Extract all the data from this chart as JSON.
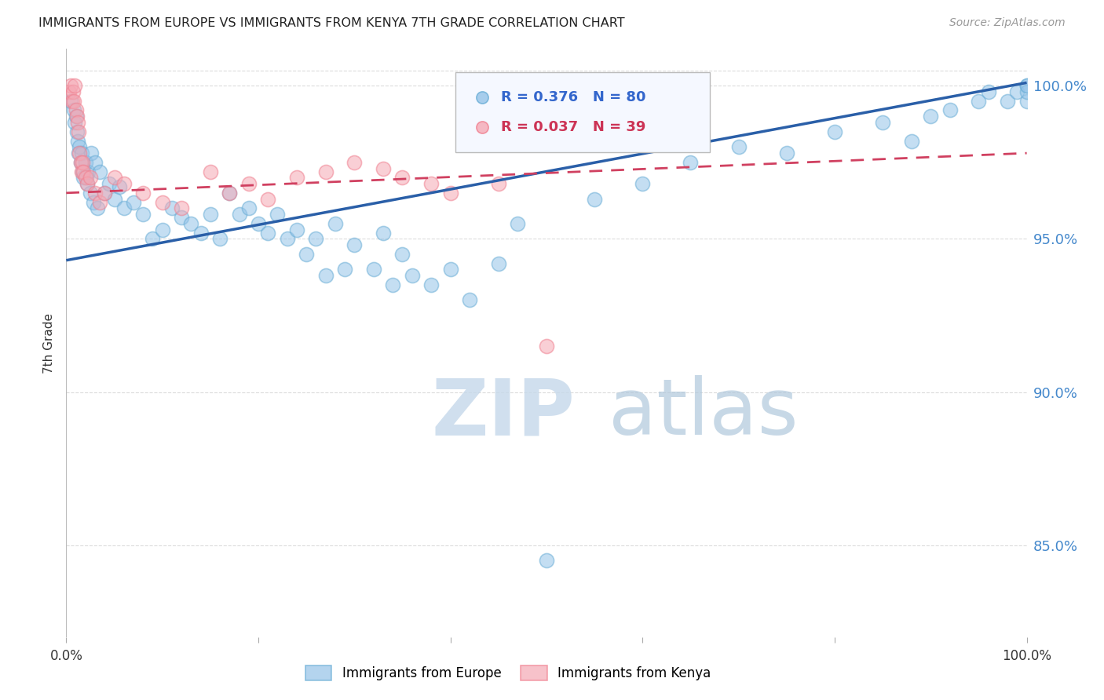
{
  "title": "IMMIGRANTS FROM EUROPE VS IMMIGRANTS FROM KENYA 7TH GRADE CORRELATION CHART",
  "source": "Source: ZipAtlas.com",
  "xlabel_bottom": "Immigrants from Europe",
  "ylabel": "7th Grade",
  "x_min": 0.0,
  "x_max": 100.0,
  "y_min": 82.0,
  "y_max": 101.2,
  "y_ticks": [
    85.0,
    90.0,
    95.0,
    100.0
  ],
  "x_ticks_labels": [
    "0.0%",
    "100.0%"
  ],
  "x_ticks_pos": [
    0.0,
    100.0
  ],
  "blue_R": 0.376,
  "blue_N": 80,
  "pink_R": 0.037,
  "pink_N": 39,
  "blue_color": "#94C3E8",
  "pink_color": "#F5A8B4",
  "blue_edge_color": "#6AAED6",
  "pink_edge_color": "#F08090",
  "blue_line_color": "#2A5FA8",
  "pink_line_color": "#D04060",
  "legend_blue_text_color": "#3366CC",
  "legend_pink_text_color": "#CC3355",
  "right_axis_color": "#4488CC",
  "watermark_zip_color": "#C5D8EA",
  "watermark_atlas_color": "#B0C8DC",
  "blue_line_x0": 0.0,
  "blue_line_y0": 94.3,
  "blue_line_x1": 100.0,
  "blue_line_y1": 100.1,
  "pink_line_x0": 0.0,
  "pink_line_y0": 96.5,
  "pink_line_x1": 100.0,
  "pink_line_y1": 97.8,
  "blue_x": [
    0.5,
    0.8,
    0.9,
    1.0,
    1.1,
    1.2,
    1.3,
    1.4,
    1.5,
    1.6,
    1.7,
    1.8,
    2.0,
    2.1,
    2.2,
    2.3,
    2.5,
    2.6,
    2.8,
    3.0,
    3.2,
    3.5,
    4.0,
    4.5,
    5.0,
    5.5,
    6.0,
    7.0,
    8.0,
    9.0,
    10.0,
    11.0,
    12.0,
    13.0,
    14.0,
    15.0,
    16.0,
    17.0,
    18.0,
    19.0,
    20.0,
    21.0,
    22.0,
    23.0,
    24.0,
    25.0,
    26.0,
    27.0,
    28.0,
    29.0,
    30.0,
    32.0,
    33.0,
    34.0,
    35.0,
    36.0,
    38.0,
    40.0,
    42.0,
    45.0,
    47.0,
    50.0,
    55.0,
    60.0,
    65.0,
    70.0,
    75.0,
    80.0,
    85.0,
    88.0,
    90.0,
    92.0,
    95.0,
    96.0,
    98.0,
    99.0,
    100.0,
    100.0,
    100.0,
    100.0
  ],
  "blue_y": [
    99.5,
    99.2,
    98.8,
    99.0,
    98.5,
    98.2,
    97.8,
    98.0,
    97.5,
    97.8,
    97.2,
    97.0,
    97.5,
    97.0,
    96.8,
    97.2,
    96.5,
    97.8,
    96.2,
    97.5,
    96.0,
    97.2,
    96.5,
    96.8,
    96.3,
    96.7,
    96.0,
    96.2,
    95.8,
    95.0,
    95.3,
    96.0,
    95.7,
    95.5,
    95.2,
    95.8,
    95.0,
    96.5,
    95.8,
    96.0,
    95.5,
    95.2,
    95.8,
    95.0,
    95.3,
    94.5,
    95.0,
    93.8,
    95.5,
    94.0,
    94.8,
    94.0,
    95.2,
    93.5,
    94.5,
    93.8,
    93.5,
    94.0,
    93.0,
    94.2,
    95.5,
    84.5,
    96.3,
    96.8,
    97.5,
    98.0,
    97.8,
    98.5,
    98.8,
    98.2,
    99.0,
    99.2,
    99.5,
    99.8,
    99.5,
    99.8,
    100.0,
    99.5,
    99.8,
    100.0
  ],
  "pink_x": [
    0.3,
    0.5,
    0.6,
    0.7,
    0.8,
    0.9,
    1.0,
    1.1,
    1.2,
    1.3,
    1.4,
    1.5,
    1.6,
    1.7,
    1.8,
    2.0,
    2.2,
    2.5,
    3.0,
    3.5,
    4.0,
    5.0,
    6.0,
    8.0,
    10.0,
    12.0,
    15.0,
    17.0,
    19.0,
    21.0,
    24.0,
    27.0,
    30.0,
    33.0,
    35.0,
    38.0,
    40.0,
    45.0,
    50.0
  ],
  "pink_y": [
    99.8,
    100.0,
    99.5,
    99.8,
    99.5,
    100.0,
    99.2,
    99.0,
    98.8,
    98.5,
    97.8,
    97.5,
    97.2,
    97.5,
    97.2,
    97.0,
    96.8,
    97.0,
    96.5,
    96.2,
    96.5,
    97.0,
    96.8,
    96.5,
    96.2,
    96.0,
    97.2,
    96.5,
    96.8,
    96.3,
    97.0,
    97.2,
    97.5,
    97.3,
    97.0,
    96.8,
    96.5,
    96.8,
    91.5
  ],
  "marker_size": 170,
  "marker_alpha": 0.55,
  "marker_lw": 1.2,
  "background_color": "#FFFFFF",
  "grid_color": "#CCCCCC",
  "grid_style": "--",
  "grid_alpha": 0.7,
  "grid_lw": 0.8
}
